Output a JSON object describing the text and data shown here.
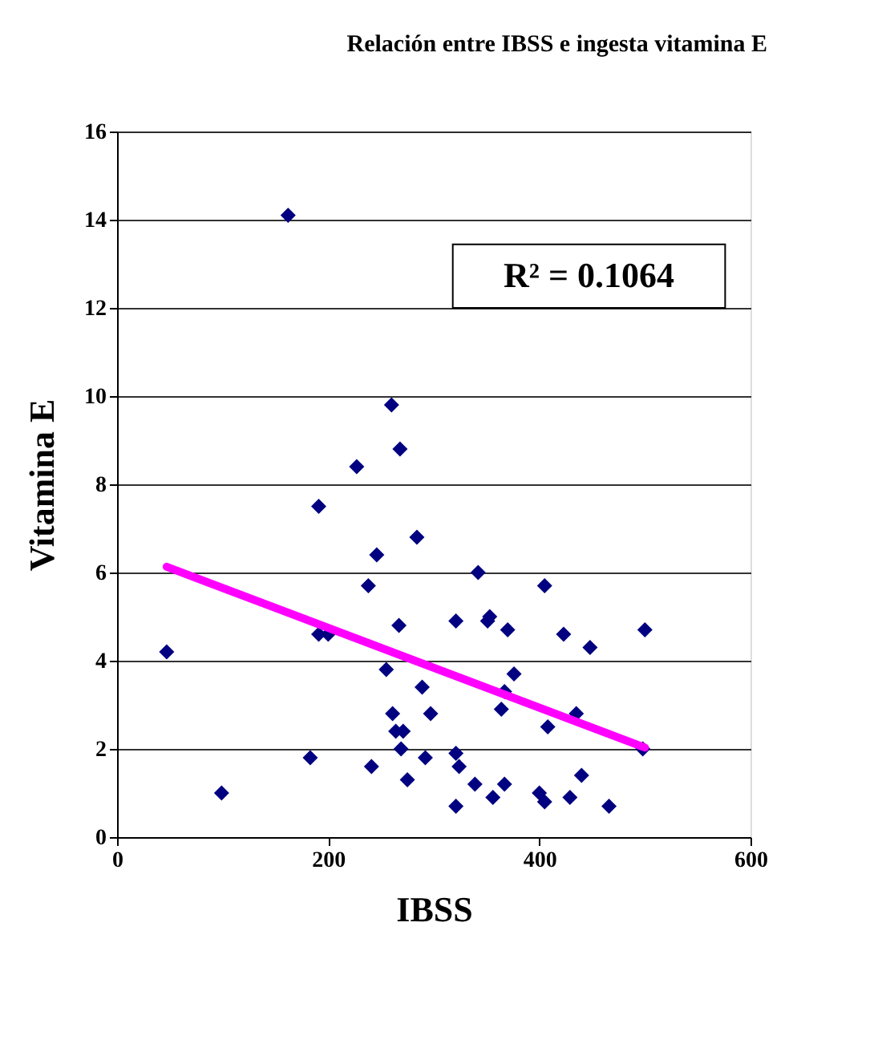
{
  "chart_data": {
    "type": "scatter",
    "title": "Relación entre IBSS e ingesta vitamina E",
    "xlabel": "IBSS",
    "ylabel": "Vitamina E",
    "xlim": [
      0,
      600
    ],
    "xticks": [
      0,
      200,
      400,
      600
    ],
    "ylim": [
      0,
      16
    ],
    "yticks": [
      0,
      2,
      4,
      6,
      8,
      10,
      12,
      14,
      16
    ],
    "grid": "y",
    "annotations": [
      "R² = 0.1064"
    ],
    "series": [
      {
        "type": "scatter",
        "marker": "diamond",
        "color": "#000080",
        "x": [
          162,
          260,
          268,
          227,
          191,
          284,
          246,
          238,
          267,
          191,
          200,
          47,
          255,
          289,
          261,
          297,
          264,
          271,
          269,
          183,
          292,
          241,
          275,
          99,
          342,
          405,
          321,
          351,
          353,
          370,
          423,
          448,
          500,
          376,
          367,
          364,
          408,
          435,
          498,
          321,
          324,
          339,
          367,
          440,
          356,
          400,
          405,
          429,
          321,
          466
        ],
        "values": [
          14.1,
          9.8,
          8.8,
          8.4,
          7.5,
          6.8,
          6.4,
          5.7,
          4.8,
          4.6,
          4.6,
          4.2,
          3.8,
          3.4,
          2.8,
          2.8,
          2.4,
          2.4,
          2.0,
          1.8,
          1.8,
          1.6,
          1.3,
          1.0,
          6.0,
          5.7,
          4.9,
          4.9,
          5.0,
          4.7,
          4.6,
          4.3,
          4.7,
          3.7,
          3.3,
          2.9,
          2.5,
          2.8,
          2.0,
          1.9,
          1.6,
          1.2,
          1.2,
          1.4,
          0.9,
          1.0,
          0.8,
          0.9,
          0.7,
          0.7
        ]
      },
      {
        "type": "line",
        "marker": "none",
        "line_style": "solid",
        "color": "#ff00ff",
        "x": [
          47,
          500
        ],
        "values": [
          6.13,
          2.03
        ]
      }
    ]
  }
}
